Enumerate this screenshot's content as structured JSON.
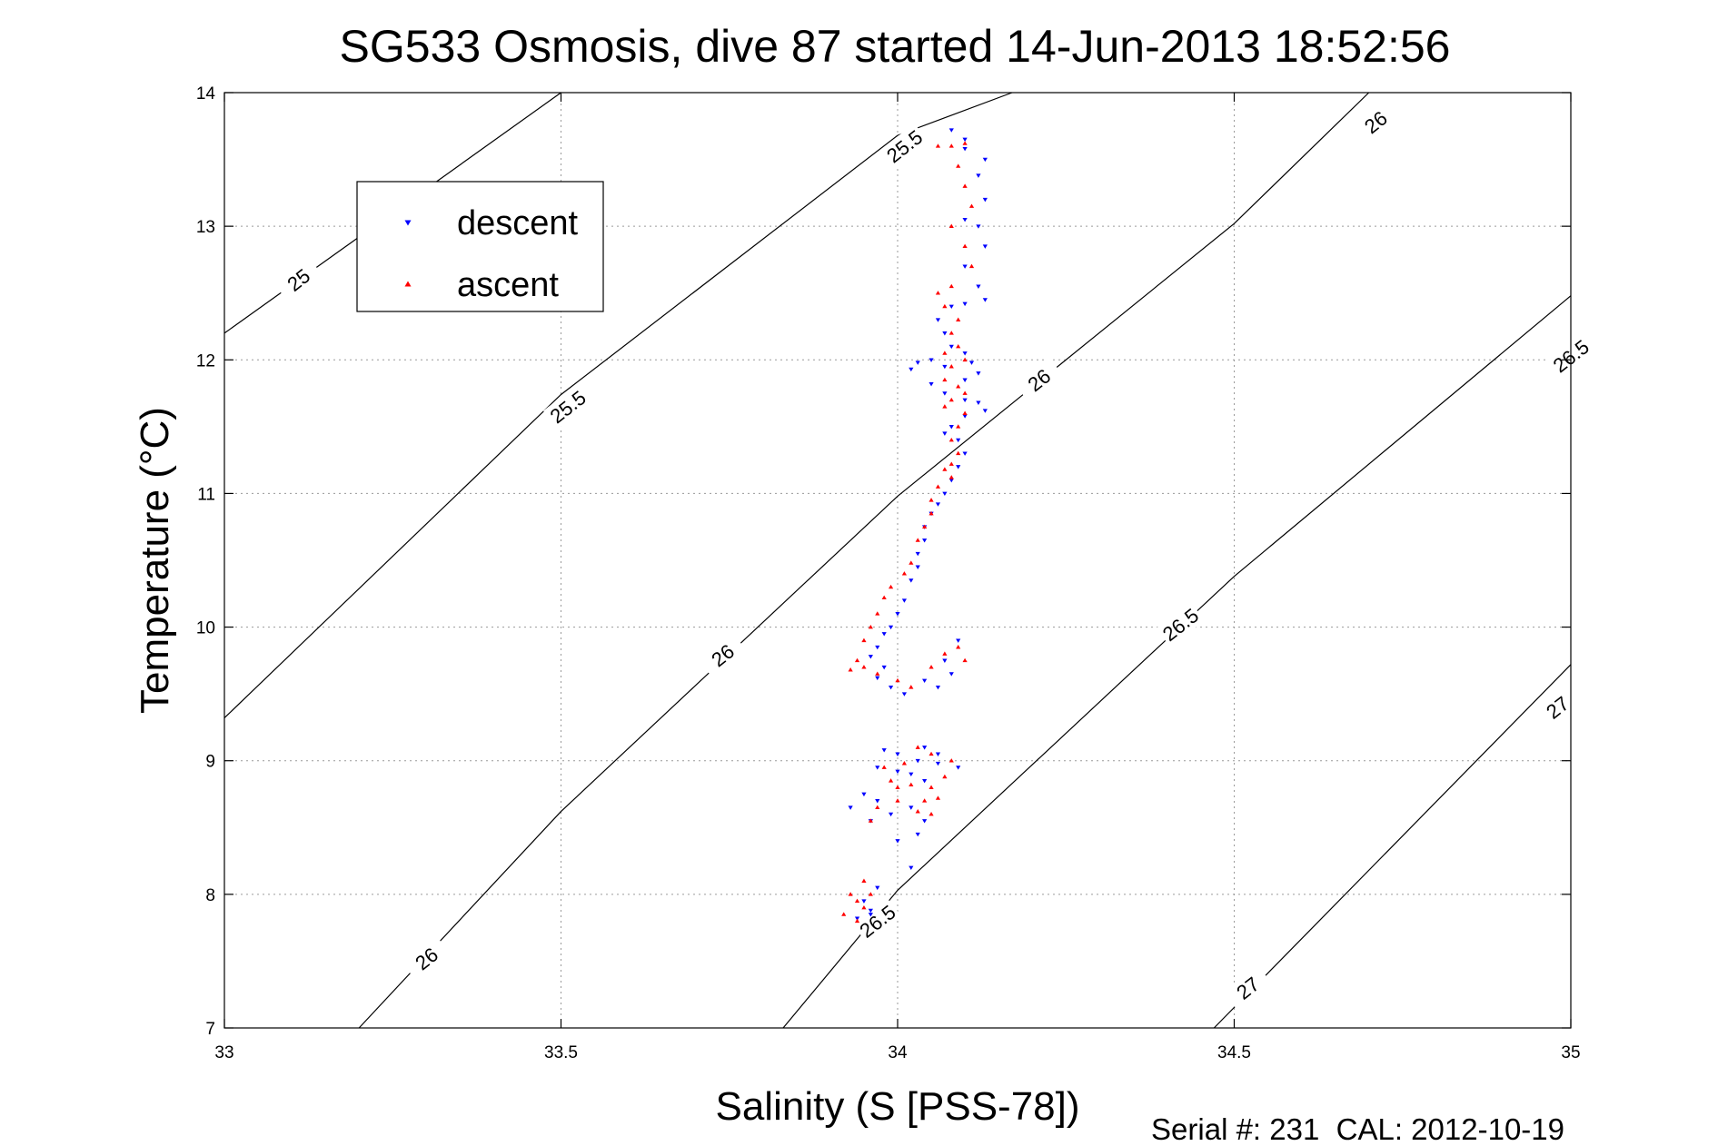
{
  "chart_data": {
    "type": "scatter",
    "title": "SG533 Osmosis, dive 87 started 14-Jun-2013 18:52:56",
    "xlabel": "Salinity (S [PSS-78])",
    "ylabel": "Temperature (°C)",
    "xlim": [
      33,
      35
    ],
    "ylim": [
      7,
      14
    ],
    "xticks": [
      "33",
      "33.5",
      "34",
      "34.5",
      "35"
    ],
    "yticks": [
      "7",
      "8",
      "9",
      "10",
      "11",
      "12",
      "13",
      "14"
    ],
    "grid": true,
    "legend_position": "top-left",
    "footer": "Serial #: 231  CAL: 2012-10-19",
    "contours": [
      {
        "label": "25",
        "points": [
          [
            33.0,
            12.2
          ],
          [
            33.5,
            14.0
          ]
        ]
      },
      {
        "label": "25.5",
        "points": [
          [
            33.0,
            9.32
          ],
          [
            33.5,
            11.74
          ],
          [
            34.0,
            13.68
          ],
          [
            34.17,
            14.0
          ]
        ]
      },
      {
        "label": "26",
        "points": [
          [
            33.2,
            7.0
          ],
          [
            33.5,
            8.62
          ],
          [
            34.0,
            10.98
          ],
          [
            34.5,
            13.02
          ],
          [
            34.7,
            14.0
          ]
        ]
      },
      {
        "label": "26.5",
        "points": [
          [
            33.83,
            7.0
          ],
          [
            34.0,
            8.03
          ],
          [
            34.5,
            10.38
          ],
          [
            35.0,
            12.48
          ]
        ]
      },
      {
        "label": "27",
        "points": [
          [
            34.47,
            7.0
          ],
          [
            35.0,
            9.72
          ]
        ]
      }
    ],
    "contour_labels": [
      {
        "text": "25",
        "at": [
          33.11,
          12.6
        ]
      },
      {
        "text": "25.5",
        "at": [
          34.01,
          13.6
        ]
      },
      {
        "text": "25.5",
        "at": [
          33.51,
          11.65
        ]
      },
      {
        "text": "26",
        "at": [
          34.71,
          13.78
        ]
      },
      {
        "text": "26",
        "at": [
          34.21,
          11.85
        ]
      },
      {
        "text": "26",
        "at": [
          33.74,
          9.79
        ]
      },
      {
        "text": "26",
        "at": [
          33.3,
          7.52
        ]
      },
      {
        "text": "26.5",
        "at": [
          35.0,
          12.03
        ]
      },
      {
        "text": "26.5",
        "at": [
          34.42,
          10.02
        ]
      },
      {
        "text": "26.5",
        "at": [
          33.97,
          7.8
        ]
      },
      {
        "text": "27",
        "at": [
          34.98,
          9.4
        ]
      },
      {
        "text": "27",
        "at": [
          34.52,
          7.3
        ]
      }
    ],
    "series": [
      {
        "name": "descent",
        "color": "#0000ff",
        "marker": "triangle-down",
        "points": [
          [
            34.08,
            13.72
          ],
          [
            34.1,
            13.65
          ],
          [
            34.1,
            13.58
          ],
          [
            34.13,
            13.5
          ],
          [
            34.12,
            13.38
          ],
          [
            34.13,
            13.2
          ],
          [
            34.1,
            13.05
          ],
          [
            34.12,
            13.0
          ],
          [
            34.13,
            12.85
          ],
          [
            34.1,
            12.7
          ],
          [
            34.12,
            12.55
          ],
          [
            34.13,
            12.45
          ],
          [
            34.1,
            12.42
          ],
          [
            34.08,
            12.4
          ],
          [
            34.06,
            12.3
          ],
          [
            34.07,
            12.2
          ],
          [
            34.08,
            12.1
          ],
          [
            34.1,
            12.05
          ],
          [
            34.11,
            11.98
          ],
          [
            34.12,
            11.9
          ],
          [
            34.1,
            11.85
          ],
          [
            34.07,
            11.95
          ],
          [
            34.05,
            12.0
          ],
          [
            34.03,
            11.98
          ],
          [
            34.02,
            11.93
          ],
          [
            34.05,
            11.82
          ],
          [
            34.07,
            11.75
          ],
          [
            34.1,
            11.7
          ],
          [
            34.12,
            11.68
          ],
          [
            34.13,
            11.62
          ],
          [
            34.1,
            11.58
          ],
          [
            34.08,
            11.5
          ],
          [
            34.07,
            11.45
          ],
          [
            34.09,
            11.4
          ],
          [
            34.1,
            11.3
          ],
          [
            34.09,
            11.2
          ],
          [
            34.08,
            11.1
          ],
          [
            34.07,
            11.0
          ],
          [
            34.06,
            10.92
          ],
          [
            34.05,
            10.85
          ],
          [
            34.04,
            10.75
          ],
          [
            34.04,
            10.65
          ],
          [
            34.03,
            10.55
          ],
          [
            34.03,
            10.45
          ],
          [
            34.02,
            10.35
          ],
          [
            34.01,
            10.2
          ],
          [
            34.0,
            10.1
          ],
          [
            33.99,
            10.0
          ],
          [
            33.98,
            9.95
          ],
          [
            33.97,
            9.85
          ],
          [
            33.96,
            9.78
          ],
          [
            33.98,
            9.7
          ],
          [
            33.97,
            9.62
          ],
          [
            33.99,
            9.55
          ],
          [
            34.01,
            9.5
          ],
          [
            34.04,
            9.6
          ],
          [
            34.06,
            9.55
          ],
          [
            34.08,
            9.65
          ],
          [
            34.07,
            9.75
          ],
          [
            34.09,
            9.9
          ],
          [
            34.03,
            9.0
          ],
          [
            34.0,
            9.05
          ],
          [
            33.98,
            9.08
          ],
          [
            33.97,
            8.95
          ],
          [
            34.0,
            8.92
          ],
          [
            34.02,
            8.9
          ],
          [
            34.04,
            8.85
          ],
          [
            34.06,
            8.98
          ],
          [
            34.09,
            8.95
          ],
          [
            34.06,
            9.05
          ],
          [
            34.04,
            9.1
          ],
          [
            33.95,
            8.75
          ],
          [
            33.97,
            8.7
          ],
          [
            33.99,
            8.6
          ],
          [
            33.96,
            8.55
          ],
          [
            34.02,
            8.65
          ],
          [
            34.04,
            8.55
          ],
          [
            34.03,
            8.45
          ],
          [
            34.0,
            8.4
          ],
          [
            33.93,
            8.65
          ],
          [
            34.02,
            8.2
          ],
          [
            33.97,
            8.05
          ],
          [
            33.95,
            7.95
          ],
          [
            33.96,
            7.88
          ],
          [
            33.94,
            7.82
          ],
          [
            33.96,
            7.85
          ]
        ]
      },
      {
        "name": "ascent",
        "color": "#ff0000",
        "marker": "triangle-up",
        "points": [
          [
            34.06,
            13.6
          ],
          [
            34.08,
            13.6
          ],
          [
            34.1,
            13.62
          ],
          [
            34.09,
            13.45
          ],
          [
            34.1,
            13.3
          ],
          [
            34.11,
            13.15
          ],
          [
            34.08,
            13.0
          ],
          [
            34.1,
            12.85
          ],
          [
            34.11,
            12.7
          ],
          [
            34.08,
            12.55
          ],
          [
            34.06,
            12.5
          ],
          [
            34.07,
            12.4
          ],
          [
            34.09,
            12.3
          ],
          [
            34.08,
            12.2
          ],
          [
            34.09,
            12.1
          ],
          [
            34.07,
            12.05
          ],
          [
            34.1,
            12.0
          ],
          [
            34.08,
            11.95
          ],
          [
            34.07,
            11.85
          ],
          [
            34.09,
            11.8
          ],
          [
            34.1,
            11.75
          ],
          [
            34.08,
            11.7
          ],
          [
            34.07,
            11.65
          ],
          [
            34.1,
            11.6
          ],
          [
            34.09,
            11.5
          ],
          [
            34.08,
            11.4
          ],
          [
            34.09,
            11.3
          ],
          [
            34.08,
            11.22
          ],
          [
            34.07,
            11.18
          ],
          [
            34.08,
            11.12
          ],
          [
            34.06,
            11.05
          ],
          [
            34.05,
            10.95
          ],
          [
            34.05,
            10.85
          ],
          [
            34.04,
            10.75
          ],
          [
            34.03,
            10.65
          ],
          [
            34.02,
            10.48
          ],
          [
            34.01,
            10.4
          ],
          [
            33.99,
            10.3
          ],
          [
            33.98,
            10.22
          ],
          [
            33.97,
            10.1
          ],
          [
            33.96,
            10.0
          ],
          [
            33.95,
            9.9
          ],
          [
            33.94,
            9.75
          ],
          [
            33.93,
            9.68
          ],
          [
            33.95,
            9.7
          ],
          [
            33.97,
            9.65
          ],
          [
            34.0,
            9.6
          ],
          [
            34.02,
            9.55
          ],
          [
            34.05,
            9.7
          ],
          [
            34.07,
            9.8
          ],
          [
            34.09,
            9.85
          ],
          [
            34.1,
            9.75
          ],
          [
            34.03,
            9.1
          ],
          [
            34.05,
            9.05
          ],
          [
            34.01,
            8.98
          ],
          [
            33.98,
            8.95
          ],
          [
            33.99,
            8.85
          ],
          [
            34.0,
            8.8
          ],
          [
            34.02,
            8.82
          ],
          [
            34.05,
            8.8
          ],
          [
            34.07,
            8.88
          ],
          [
            34.06,
            8.72
          ],
          [
            34.04,
            8.7
          ],
          [
            34.03,
            8.62
          ],
          [
            34.05,
            8.6
          ],
          [
            33.97,
            8.65
          ],
          [
            33.96,
            8.55
          ],
          [
            34.0,
            8.7
          ],
          [
            34.08,
            9.0
          ],
          [
            33.95,
            8.1
          ],
          [
            33.93,
            8.0
          ],
          [
            33.92,
            7.85
          ],
          [
            33.94,
            7.8
          ],
          [
            33.95,
            7.9
          ],
          [
            33.96,
            8.0
          ],
          [
            33.94,
            7.95
          ]
        ]
      }
    ]
  }
}
